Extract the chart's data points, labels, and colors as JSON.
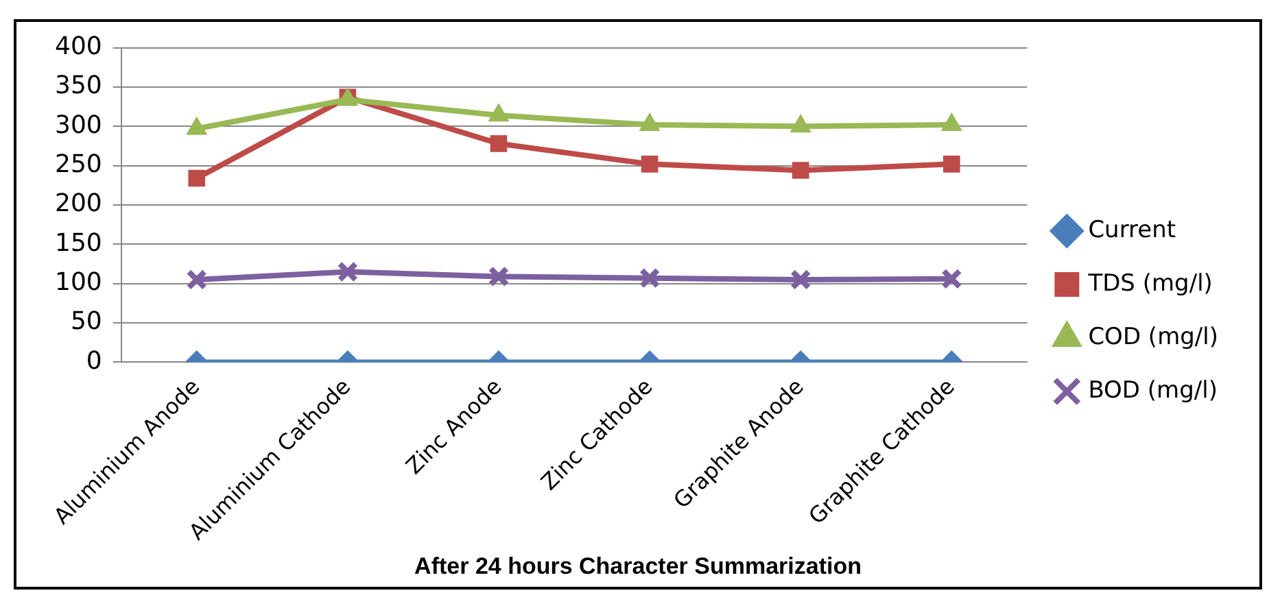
{
  "chart_data": {
    "type": "line",
    "title": "After 24 hours Character Summarization",
    "categories": [
      "Aluminium Anode",
      "Aluminium Cathode",
      "Zinc Anode",
      "Zinc Cathode",
      "Graphite Anode",
      "Graphite Cathode"
    ],
    "series": [
      {
        "name": "Current",
        "color": "#4a7ebb",
        "marker": "diamond",
        "values": [
          0,
          0,
          0,
          0,
          0,
          0
        ]
      },
      {
        "name": "TDS (mg/l)",
        "color": "#be4b48",
        "marker": "square",
        "values": [
          234,
          337,
          278,
          252,
          244,
          252
        ]
      },
      {
        "name": "COD (mg/l)",
        "color": "#98b954",
        "marker": "triangle",
        "values": [
          297,
          334,
          314,
          302,
          300,
          302
        ]
      },
      {
        "name": "BOD (mg/l)",
        "color": "#7d60a0",
        "marker": "cross",
        "values": [
          105,
          115,
          109,
          107,
          105,
          106
        ]
      }
    ],
    "ylim": [
      0,
      400
    ],
    "yticks": [
      0,
      50,
      100,
      150,
      200,
      250,
      300,
      350,
      400
    ],
    "grid": "y",
    "legend": "right"
  }
}
